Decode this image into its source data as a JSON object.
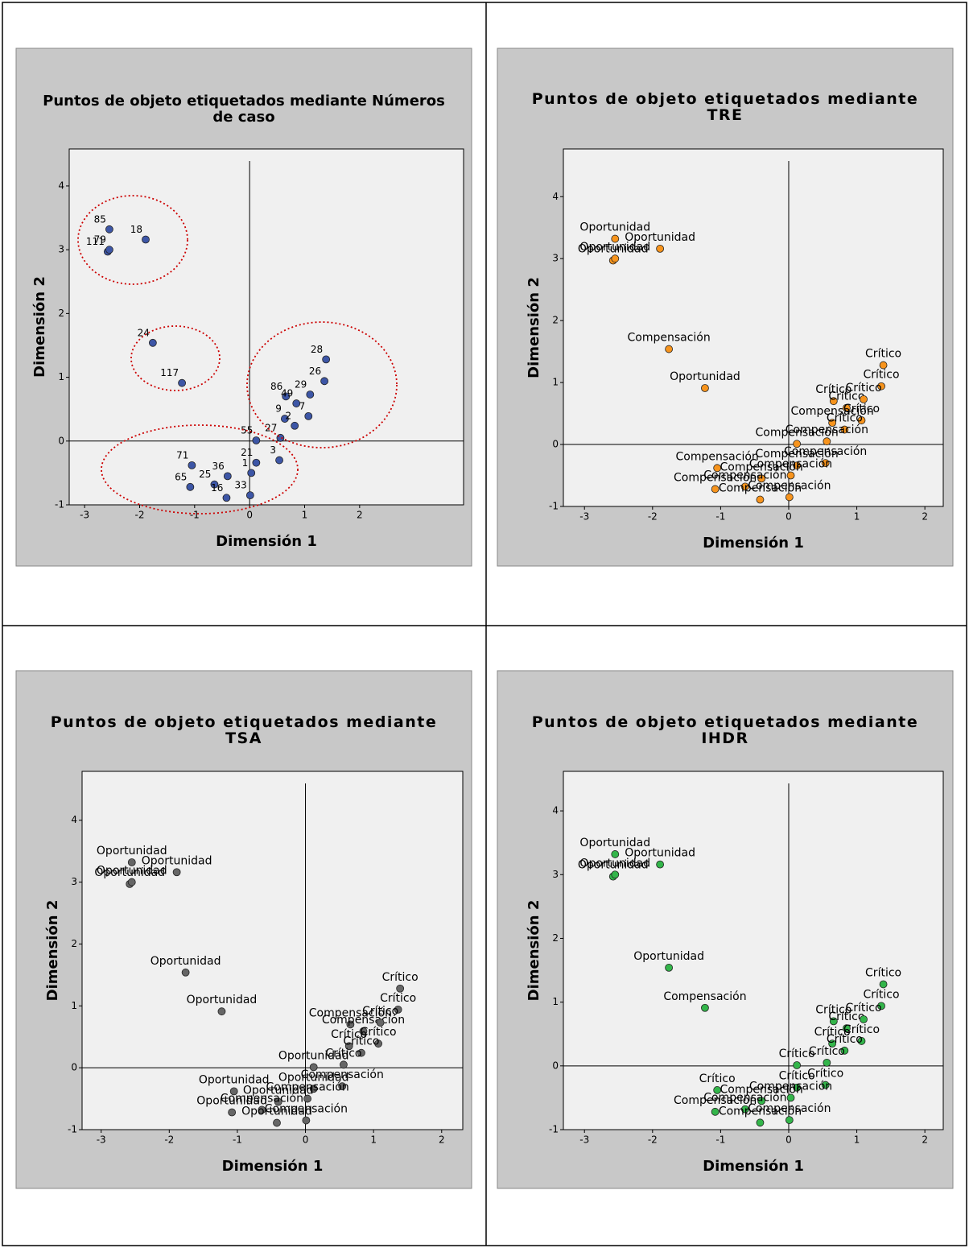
{
  "chart_data": [
    {
      "type": "scatter",
      "title": "Puntos de objeto etiquetados mediante Números de caso",
      "x_label": "Dimensión 1",
      "y_label": "Dimensión 2",
      "xlim": [
        -3.28,
        3.89
      ],
      "ylim": [
        -1,
        4.58
      ],
      "xticks": [
        -3,
        -2,
        -1,
        0,
        1,
        2
      ],
      "yticks": [
        -1,
        0,
        1,
        2,
        3,
        4
      ],
      "ref_x": 0,
      "ref_y": 0,
      "color": "#3d56a6",
      "x": [
        -2.55,
        -2.58,
        -1.89,
        -2.55,
        -1.76,
        -1.23,
        1.39,
        1.36,
        0.66,
        0.85,
        1.1,
        1.07,
        0.64,
        0.82,
        0.12,
        0.56,
        0.54,
        0.12,
        0.03,
        -1.05,
        -0.4,
        -1.08,
        -0.64,
        -0.42,
        0.01
      ],
      "y": [
        3.32,
        2.97,
        3.16,
        3.0,
        1.54,
        0.91,
        1.28,
        0.94,
        0.7,
        0.59,
        0.73,
        0.39,
        0.35,
        0.24,
        0.01,
        0.05,
        -0.3,
        -0.34,
        -0.5,
        -0.38,
        -0.55,
        -0.72,
        -0.68,
        -0.89,
        -0.85
      ],
      "labels": [
        "85",
        "111",
        "18",
        "79",
        "24",
        "117",
        "28",
        "26",
        "86",
        "49",
        "29",
        "7",
        "9",
        "2",
        "55",
        "27",
        "3",
        "21",
        "1",
        "71",
        "36",
        "65",
        "25",
        "16",
        "33"
      ]
    },
    {
      "type": "scatter",
      "title": "Puntos de objeto etiquetados mediante TRE",
      "x_label": "Dimensión 1",
      "y_label": "Dimensión 2",
      "xlim": [
        -3.31,
        2.27
      ],
      "ylim": [
        -1,
        4.77
      ],
      "xticks": [
        -3,
        -2,
        -1,
        0,
        1,
        2
      ],
      "yticks": [
        -1,
        0,
        1,
        2,
        3,
        4
      ],
      "ref_x": 0,
      "ref_y": 0,
      "color": "#f7941d",
      "x": [
        -2.55,
        -2.58,
        -1.89,
        -2.55,
        -1.76,
        -1.23,
        1.39,
        1.36,
        0.66,
        0.85,
        1.1,
        1.07,
        0.64,
        0.82,
        0.12,
        0.56,
        0.54,
        0.12,
        0.03,
        -1.05,
        -0.4,
        -1.08,
        -0.64,
        -0.42,
        0.01
      ],
      "y": [
        3.32,
        2.97,
        3.16,
        3.0,
        1.54,
        0.91,
        1.28,
        0.94,
        0.7,
        0.59,
        0.73,
        0.39,
        0.35,
        0.24,
        0.01,
        0.05,
        -0.3,
        -0.34,
        -0.5,
        -0.38,
        -0.55,
        -0.72,
        -0.68,
        -0.89,
        -0.85
      ],
      "labels": [
        "Oportunidad",
        "Oportunidad",
        "Oportunidad",
        "Oportunidad",
        "Compensación",
        "Oportunidad",
        "Crítico",
        "Crítico",
        "Crítico",
        "Crítico",
        "Crítico",
        "Crítico",
        "Compensación",
        "Crítico",
        "Compensación",
        "Compensación",
        "Compensación",
        "Compensación",
        "Compensación",
        "Compensación",
        "Compensación",
        "Compensación",
        "Compensación",
        "Compensación",
        "Compensación"
      ]
    },
    {
      "type": "scatter",
      "title": "Puntos de objeto etiquetados mediante TSA",
      "x_label": "Dimensión 1",
      "y_label": "Dimensión 2",
      "xlim": [
        -3.28,
        2.31
      ],
      "ylim": [
        -1,
        4.79
      ],
      "xticks": [
        -3,
        -2,
        -1,
        0,
        1,
        2
      ],
      "yticks": [
        -1,
        0,
        1,
        2,
        3,
        4
      ],
      "ref_x": 0,
      "ref_y": 0,
      "color": "#666666",
      "x": [
        -2.55,
        -2.58,
        -1.89,
        -2.55,
        -1.76,
        -1.23,
        1.39,
        1.36,
        0.66,
        0.85,
        1.1,
        1.07,
        0.64,
        0.82,
        0.12,
        0.56,
        0.54,
        0.12,
        0.03,
        -1.05,
        -0.4,
        -1.08,
        -0.64,
        -0.42,
        0.01
      ],
      "y": [
        3.32,
        2.97,
        3.16,
        3.0,
        1.54,
        0.91,
        1.28,
        0.94,
        0.7,
        0.59,
        0.73,
        0.39,
        0.35,
        0.24,
        0.01,
        0.05,
        -0.3,
        -0.34,
        -0.5,
        -0.38,
        -0.55,
        -0.72,
        -0.68,
        -0.89,
        -0.85
      ],
      "labels": [
        "Oportunidad",
        "Oportunidad",
        "Oportunidad",
        "Oportunidad",
        "Oportunidad",
        "Oportunidad",
        "Crítico",
        "Crítico",
        "Compensación",
        "Compensación",
        "Crítico",
        "Crítico",
        "Crítico",
        "Crítico",
        "Oportunidad",
        "Crítico",
        "Compensación",
        "Oportunidad",
        "Compensación",
        "Oportunidad",
        "Oportunidad",
        "Oportunidad",
        "Compensación",
        "Oportunidad",
        "Compensación"
      ]
    },
    {
      "type": "scatter",
      "title": "Puntos de objeto etiquetados mediante IHDR",
      "x_label": "Dimensión 1",
      "y_label": "Dimensión 2",
      "xlim": [
        -3.31,
        2.27
      ],
      "ylim": [
        -1,
        4.62
      ],
      "xticks": [
        -3,
        -2,
        -1,
        0,
        1,
        2
      ],
      "yticks": [
        -1,
        0,
        1,
        2,
        3,
        4
      ],
      "ref_x": 0,
      "ref_y": 0,
      "color": "#33b54a",
      "x": [
        -2.55,
        -2.58,
        -1.89,
        -2.55,
        -1.76,
        -1.23,
        1.39,
        1.36,
        0.66,
        0.85,
        1.1,
        1.07,
        0.64,
        0.82,
        0.12,
        0.56,
        0.54,
        0.12,
        0.03,
        -1.05,
        -0.4,
        -1.08,
        -0.64,
        -0.42,
        0.01
      ],
      "y": [
        3.32,
        2.97,
        3.16,
        3.0,
        1.54,
        0.91,
        1.28,
        0.94,
        0.7,
        0.59,
        0.73,
        0.39,
        0.35,
        0.24,
        0.01,
        0.05,
        -0.3,
        -0.34,
        -0.5,
        -0.38,
        -0.55,
        -0.72,
        -0.68,
        -0.89,
        -0.85
      ],
      "labels": [
        "Oportunidad",
        "Oportunidad",
        "Oportunidad",
        "Oportunidad",
        "Oportunidad",
        "Compensación",
        "Crítico",
        "Crítico",
        "Crítico",
        "Crítico",
        "Crítico",
        "Crítico",
        "Crítico",
        "Crítico",
        "Crítico",
        "Crítico",
        "Crítico",
        "Crítico",
        "Compensación",
        "Crítico",
        "Compensación",
        "Compensación",
        "Compensación",
        "Compensación",
        "Compensación"
      ]
    }
  ]
}
